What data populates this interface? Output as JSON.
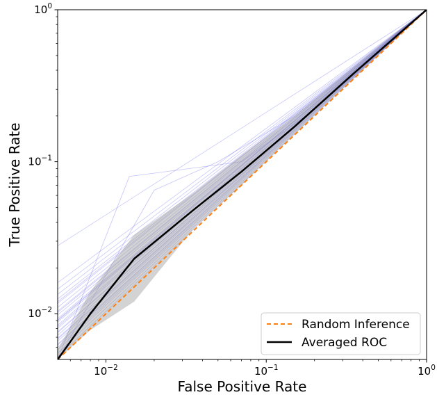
{
  "chart_data": {
    "type": "line",
    "title": "",
    "xlabel": "False Positive Rate",
    "ylabel": "True Positive Rate",
    "xscale": "log",
    "yscale": "log",
    "xlim": [
      0.005,
      1
    ],
    "ylim": [
      0.005,
      1
    ],
    "grid": false,
    "legend_position": "bottom-right",
    "x_ticks": [
      {
        "base": "10",
        "exp": "−2",
        "value": 0.01
      },
      {
        "base": "10",
        "exp": "−1",
        "value": 0.1
      },
      {
        "base": "10",
        "exp": "0",
        "value": 1
      }
    ],
    "y_ticks": [
      {
        "base": "10",
        "exp": "−2",
        "value": 0.01
      },
      {
        "base": "10",
        "exp": "−1",
        "value": 0.1
      },
      {
        "base": "10",
        "exp": "0",
        "value": 1
      }
    ],
    "series": [
      {
        "name": "Random Inference",
        "style": "dashed",
        "color": "#ff7f0e",
        "x": [
          0.005,
          1
        ],
        "y": [
          0.005,
          1
        ]
      },
      {
        "name": "Averaged ROC",
        "style": "solid",
        "color": "#000000",
        "x": [
          0.005,
          0.008,
          0.015,
          0.035,
          0.07,
          0.15,
          0.35,
          0.7,
          1
        ],
        "y": [
          0.005,
          0.01,
          0.023,
          0.048,
          0.086,
          0.17,
          0.38,
          0.72,
          1
        ]
      }
    ],
    "band": {
      "color": "#9e9e9e",
      "x": [
        0.005,
        0.008,
        0.015,
        0.035,
        0.07,
        0.15,
        0.35,
        0.7,
        1
      ],
      "upper": [
        0.0058,
        0.014,
        0.033,
        0.062,
        0.11,
        0.2,
        0.42,
        0.76,
        1
      ],
      "lower": [
        0.005,
        0.0078,
        0.012,
        0.036,
        0.07,
        0.152,
        0.352,
        0.7,
        1
      ]
    },
    "individual_curves": {
      "color": "#3a3ae8",
      "y_at_min_x": [
        0.0052,
        0.0055,
        0.0058,
        0.006,
        0.0063,
        0.0066,
        0.0069,
        0.0072,
        0.0076,
        0.008,
        0.0084,
        0.0088,
        0.0093,
        0.0098,
        0.0104,
        0.011,
        0.0117,
        0.0125,
        0.0134,
        0.0145,
        0.016,
        0.028,
        0.009,
        0.0062,
        0.0068,
        0.0075,
        0.0082,
        0.0091,
        0.0102,
        0.012
      ],
      "x_samples": [
        0.005,
        0.015,
        0.05,
        0.2,
        0.6,
        1
      ],
      "outliers": [
        {
          "x": [
            0.005,
            0.014,
            0.07,
            0.2,
            0.6,
            1
          ],
          "y": [
            0.005,
            0.08,
            0.1,
            0.22,
            0.62,
            1
          ]
        },
        {
          "x": [
            0.005,
            0.02,
            0.05,
            0.15,
            0.5,
            1
          ],
          "y": [
            0.005,
            0.065,
            0.1,
            0.2,
            0.55,
            1
          ]
        }
      ]
    }
  }
}
